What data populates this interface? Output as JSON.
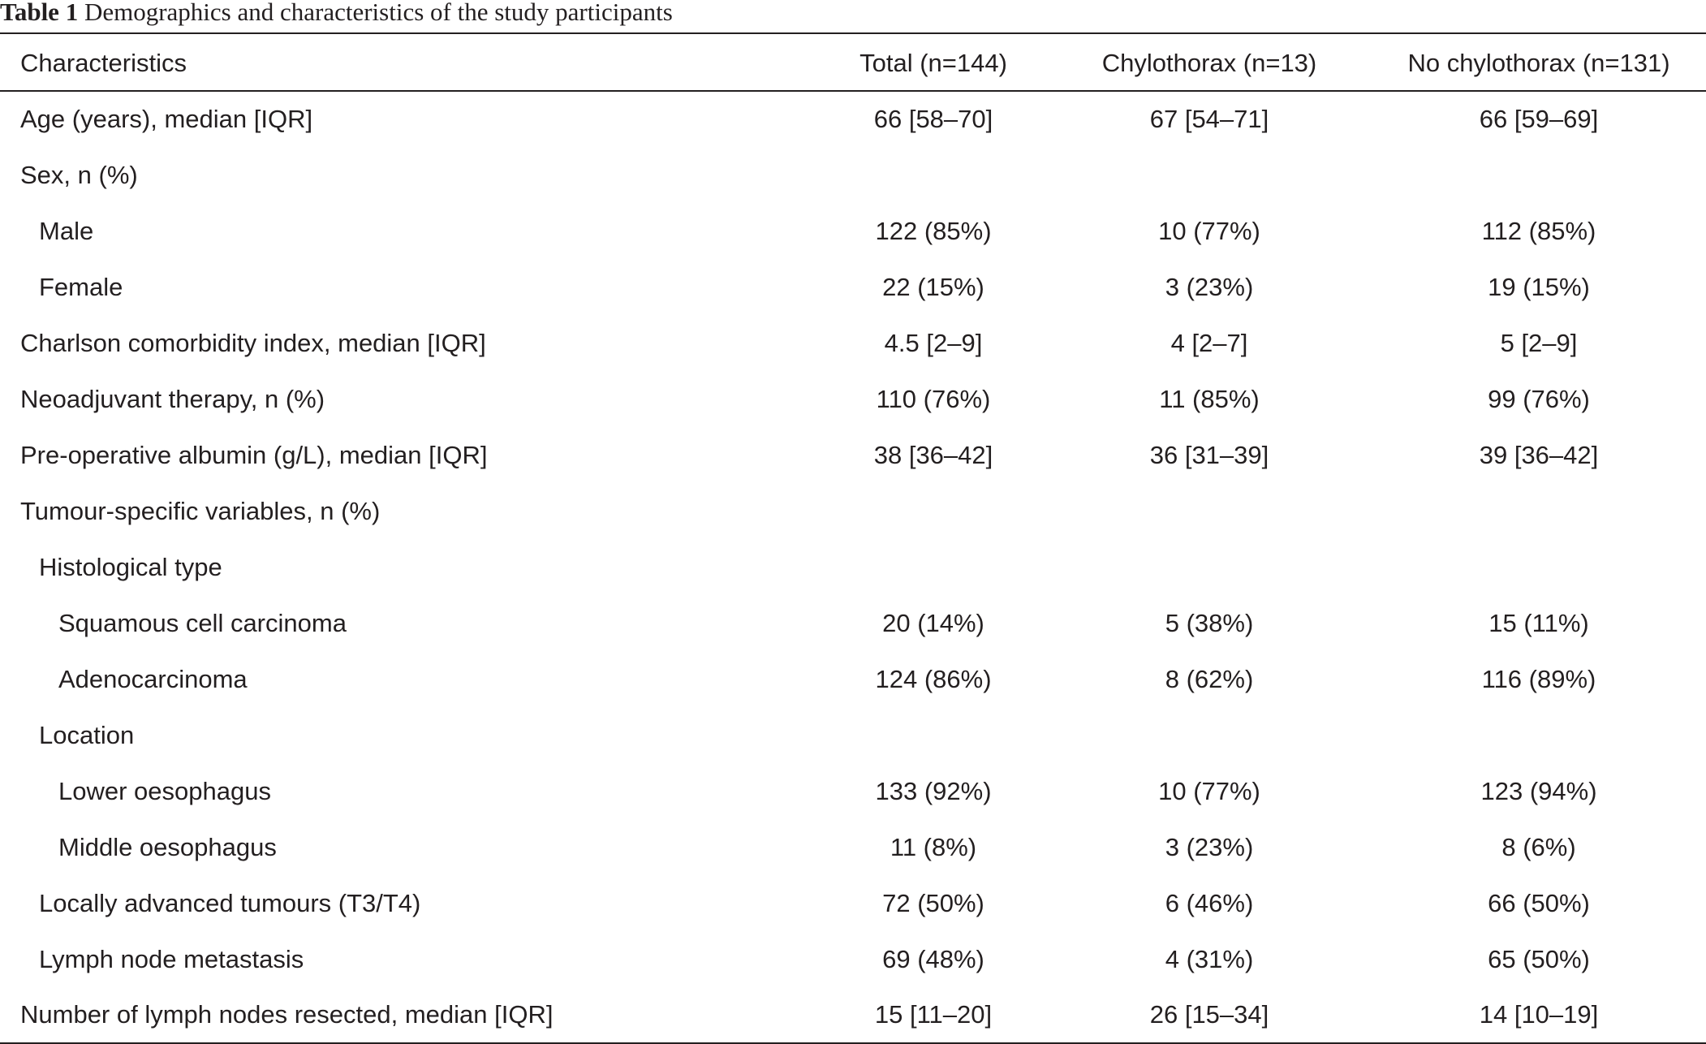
{
  "caption": {
    "label": "Table 1",
    "text": "Demographics and characteristics of the study participants"
  },
  "table": {
    "headers": [
      "Characteristics",
      "Total (n=144)",
      "Chylothorax (n=13)",
      "No chylothorax (n=131)"
    ],
    "rows": [
      {
        "label": "Age (years), median [IQR]",
        "indent": 0,
        "values": [
          "66 [58–70]",
          "67 [54–71]",
          "66 [59–69]"
        ]
      },
      {
        "label": "Sex, n (%)",
        "indent": 0,
        "values": [
          "",
          "",
          ""
        ]
      },
      {
        "label": "Male",
        "indent": 1,
        "values": [
          "122 (85%)",
          "10 (77%)",
          "112 (85%)"
        ]
      },
      {
        "label": "Female",
        "indent": 1,
        "values": [
          "22 (15%)",
          "3 (23%)",
          "19 (15%)"
        ]
      },
      {
        "label": "Charlson comorbidity index, median [IQR]",
        "indent": 0,
        "values": [
          "4.5 [2–9]",
          "4 [2–7]",
          "5 [2–9]"
        ]
      },
      {
        "label": "Neoadjuvant therapy, n (%)",
        "indent": 0,
        "values": [
          "110 (76%)",
          "11 (85%)",
          "99 (76%)"
        ]
      },
      {
        "label": "Pre-operative albumin (g/L), median [IQR]",
        "indent": 0,
        "values": [
          "38 [36–42]",
          "36 [31–39]",
          "39 [36–42]"
        ]
      },
      {
        "label": "Tumour-specific variables, n (%)",
        "indent": 0,
        "values": [
          "",
          "",
          ""
        ]
      },
      {
        "label": "Histological type",
        "indent": 1,
        "values": [
          "",
          "",
          ""
        ]
      },
      {
        "label": "Squamous cell carcinoma",
        "indent": 2,
        "values": [
          "20 (14%)",
          "5 (38%)",
          "15 (11%)"
        ]
      },
      {
        "label": "Adenocarcinoma",
        "indent": 2,
        "values": [
          "124 (86%)",
          "8 (62%)",
          "116 (89%)"
        ]
      },
      {
        "label": "Location",
        "indent": 1,
        "values": [
          "",
          "",
          ""
        ]
      },
      {
        "label": "Lower oesophagus",
        "indent": 2,
        "values": [
          "133 (92%)",
          "10 (77%)",
          "123 (94%)"
        ]
      },
      {
        "label": "Middle oesophagus",
        "indent": 2,
        "values": [
          "11 (8%)",
          "3 (23%)",
          "8 (6%)"
        ]
      },
      {
        "label": "Locally advanced tumours (T3/T4)",
        "indent": 1,
        "values": [
          "72 (50%)",
          "6 (46%)",
          "66 (50%)"
        ]
      },
      {
        "label": "Lymph node metastasis",
        "indent": 1,
        "values": [
          "69 (48%)",
          "4 (31%)",
          "65 (50%)"
        ]
      },
      {
        "label": "Number of lymph nodes resected, median [IQR]",
        "indent": 0,
        "values": [
          "15 [11–20]",
          "26 [15–34]",
          "14 [10–19]"
        ]
      }
    ]
  }
}
